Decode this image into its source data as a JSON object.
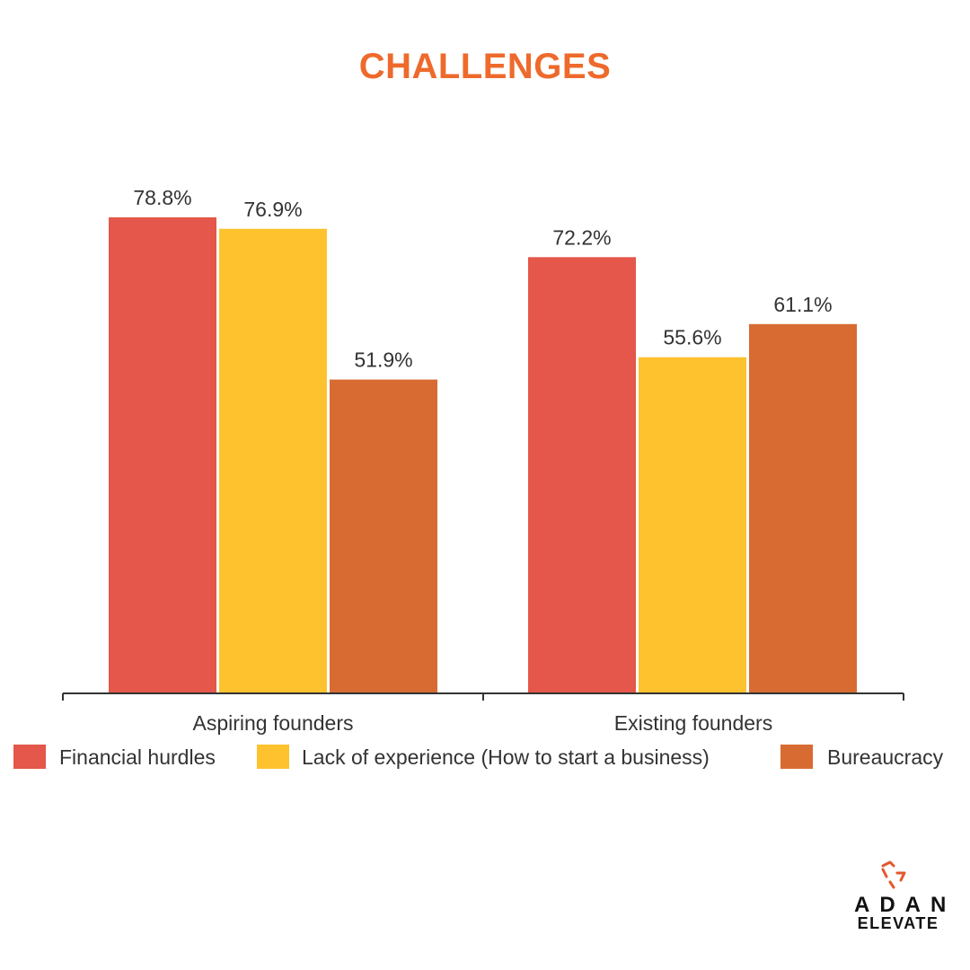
{
  "title": "CHALLENGES",
  "colors": {
    "title": "#ee6a2c",
    "financial": "#e4574a",
    "experience": "#fdc22e",
    "bureaucracy": "#d86b32",
    "axis": "#333333",
    "logo_accent": "#e4572e"
  },
  "chart_data": {
    "type": "bar",
    "categories": [
      "Aspiring founders",
      "Existing founders"
    ],
    "series": [
      {
        "name": "Financial hurdles",
        "values": [
          78.8,
          72.2
        ],
        "labels": [
          "78.8%",
          "72.2%"
        ],
        "color": "#e4574a"
      },
      {
        "name": "Lack of experience (How to start a business)",
        "values": [
          76.9,
          55.6
        ],
        "labels": [
          "76.9%",
          "55.6%"
        ],
        "color": "#fdc22e"
      },
      {
        "name": "Bureaucracy",
        "values": [
          51.9,
          61.1
        ],
        "labels": [
          "51.9%",
          "61.1%"
        ],
        "color": "#d86b32"
      }
    ],
    "title": "CHALLENGES",
    "xlabel": "",
    "ylabel": "",
    "ylim": [
      0,
      100
    ],
    "grid": false,
    "legend": "bottom"
  },
  "logo": {
    "line1": "ADAN",
    "line2": "ELEVATE"
  }
}
